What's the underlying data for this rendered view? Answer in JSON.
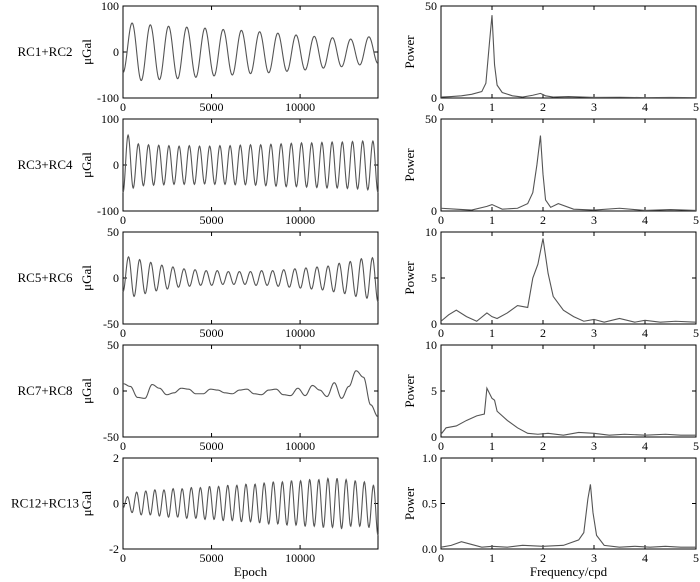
{
  "chart_data": [
    {
      "type": "line",
      "panel": "time",
      "row_label": "RC1+RC2",
      "ylabel": "μGal",
      "xlabel": "",
      "xlim": [
        0,
        14400
      ],
      "ylim": [
        -100,
        100
      ],
      "xticks": [
        0,
        5000,
        10000
      ],
      "yticks": [
        -100,
        0,
        100
      ],
      "series": [
        {
          "values": [
            -45,
            63,
            -62,
            59,
            -60,
            56,
            -58,
            54,
            -55,
            52,
            -52,
            49,
            -50,
            47,
            -47,
            44,
            -45,
            41,
            -42,
            37,
            -39,
            34,
            -35,
            31,
            -32,
            28,
            -28,
            33,
            -25
          ],
          "x_start": 0,
          "x_end": 14400
        }
      ]
    },
    {
      "type": "line",
      "panel": "spectrum",
      "ylabel": "Power",
      "xlabel": "",
      "xlim": [
        0,
        5
      ],
      "ylim": [
        0,
        50
      ],
      "xticks": [
        0,
        1,
        2,
        3,
        4,
        5
      ],
      "yticks": [
        0,
        50
      ],
      "series": [
        {
          "x": [
            0,
            0.2,
            0.4,
            0.6,
            0.8,
            0.88,
            0.95,
            1.0,
            1.05,
            1.1,
            1.2,
            1.4,
            1.6,
            1.8,
            1.95,
            2.05,
            2.2,
            2.5,
            3.0,
            3.5,
            4.0,
            4.5,
            5.0
          ],
          "y": [
            0.5,
            0.8,
            1.2,
            2.0,
            3.5,
            8,
            30,
            45,
            18,
            7,
            3,
            1.2,
            0.5,
            1.5,
            2.5,
            1.2,
            0.5,
            0.8,
            0.3,
            0.4,
            0.2,
            0.3,
            0.2
          ]
        }
      ]
    },
    {
      "type": "line",
      "panel": "time",
      "row_label": "RC3+RC4",
      "ylabel": "μGal",
      "xlabel": "",
      "xlim": [
        0,
        14400
      ],
      "ylim": [
        -100,
        100
      ],
      "xticks": [
        0,
        5000,
        10000
      ],
      "yticks": [
        -100,
        0,
        100
      ],
      "series": [
        {
          "values": [
            -60,
            65,
            -50,
            46,
            -45,
            44,
            -44,
            43,
            -43,
            42,
            -42,
            41,
            -42,
            42,
            -42,
            41,
            -41,
            41,
            -42,
            42,
            -42,
            42,
            -43,
            43,
            -43,
            44,
            -44,
            44,
            -45,
            45,
            -46,
            46,
            -47,
            47,
            -47,
            48,
            -48,
            48,
            -49,
            49,
            -50,
            50,
            -50,
            50,
            -51,
            51,
            -52,
            52,
            -54,
            52,
            -60
          ],
          "x_start": 0,
          "x_end": 14400
        }
      ]
    },
    {
      "type": "line",
      "panel": "spectrum",
      "ylabel": "Power",
      "xlabel": "",
      "xlim": [
        0,
        5
      ],
      "ylim": [
        0,
        50
      ],
      "xticks": [
        0,
        1,
        2,
        3,
        4,
        5
      ],
      "yticks": [
        0,
        50
      ],
      "series": [
        {
          "x": [
            0,
            0.3,
            0.6,
            0.9,
            1.0,
            1.2,
            1.5,
            1.7,
            1.8,
            1.88,
            1.95,
            2.0,
            2.05,
            2.15,
            2.3,
            2.6,
            3.0,
            3.5,
            4.0,
            4.5,
            5.0
          ],
          "y": [
            1.5,
            1.0,
            0.5,
            2.5,
            3.5,
            1.0,
            1.5,
            4,
            10,
            25,
            41,
            20,
            6,
            2,
            4,
            1,
            0.5,
            1.5,
            0.3,
            0.8,
            0.3
          ]
        }
      ]
    },
    {
      "type": "line",
      "panel": "time",
      "row_label": "RC5+RC6",
      "ylabel": "μGal",
      "xlabel": "",
      "xlim": [
        0,
        14400
      ],
      "ylim": [
        -50,
        50
      ],
      "xticks": [
        0,
        5000,
        10000
      ],
      "yticks": [
        -50,
        0,
        50
      ],
      "series": [
        {
          "values": [
            -15,
            23,
            -20,
            20,
            -17,
            17,
            -14,
            14,
            -12,
            12,
            -10,
            10,
            -9,
            9,
            -8,
            8,
            -8,
            8,
            -7,
            7,
            -7,
            7,
            -7,
            7,
            -8,
            8,
            -8,
            8,
            -9,
            9,
            -10,
            10,
            -11,
            11,
            -12,
            12,
            -13,
            13,
            -15,
            16,
            -17,
            18,
            -20,
            21,
            -22,
            22,
            -26
          ],
          "x_start": 0,
          "x_end": 14400
        }
      ]
    },
    {
      "type": "line",
      "panel": "spectrum",
      "ylabel": "Power",
      "xlabel": "",
      "xlim": [
        0,
        5
      ],
      "ylim": [
        0,
        10
      ],
      "xticks": [
        0,
        1,
        2,
        3,
        4,
        5
      ],
      "yticks": [
        0,
        5,
        10
      ],
      "series": [
        {
          "x": [
            0,
            0.15,
            0.3,
            0.5,
            0.7,
            0.9,
            1.0,
            1.1,
            1.3,
            1.5,
            1.7,
            1.8,
            1.9,
            2.0,
            2.1,
            2.2,
            2.4,
            2.6,
            2.8,
            3.0,
            3.2,
            3.5,
            3.8,
            4.0,
            4.3,
            4.6,
            5.0
          ],
          "y": [
            0.3,
            1.0,
            1.5,
            0.8,
            0.3,
            1.2,
            0.8,
            0.6,
            1.2,
            2.0,
            1.8,
            5,
            6.5,
            9.3,
            5.5,
            3.0,
            1.5,
            0.8,
            0.3,
            0.5,
            0.2,
            0.6,
            0.2,
            0.4,
            0.2,
            0.3,
            0.2
          ]
        }
      ]
    },
    {
      "type": "line",
      "panel": "time",
      "row_label": "RC7+RC8",
      "ylabel": "μGal",
      "xlabel": "",
      "xlim": [
        0,
        14400
      ],
      "ylim": [
        -50,
        50
      ],
      "xticks": [
        0,
        5000,
        10000
      ],
      "yticks": [
        -50,
        0,
        50
      ],
      "series": [
        {
          "values": [
            8,
            5,
            -7,
            -8,
            7,
            3,
            -4,
            -2,
            3,
            2,
            -3,
            -3,
            2,
            1,
            -2,
            -3,
            1,
            2,
            -3,
            -4,
            1,
            2,
            -4,
            -5,
            3,
            -5,
            6,
            1,
            -6,
            9,
            -8,
            5,
            22,
            15,
            -15,
            -28
          ],
          "x_start": 0,
          "x_end": 14400
        }
      ]
    },
    {
      "type": "line",
      "panel": "spectrum",
      "ylabel": "Power",
      "xlabel": "",
      "xlim": [
        0,
        5
      ],
      "ylim": [
        0,
        10
      ],
      "xticks": [
        0,
        1,
        2,
        3,
        4,
        5
      ],
      "yticks": [
        0,
        5,
        10
      ],
      "series": [
        {
          "x": [
            0,
            0.1,
            0.3,
            0.5,
            0.7,
            0.85,
            0.9,
            1.0,
            1.05,
            1.1,
            1.3,
            1.5,
            1.7,
            1.9,
            2.1,
            2.4,
            2.7,
            3.0,
            3.3,
            3.6,
            4.0,
            4.4,
            4.7,
            5.0
          ],
          "y": [
            0.3,
            1.0,
            1.2,
            1.8,
            2.3,
            2.5,
            5.3,
            4.2,
            4.0,
            2.8,
            1.8,
            1.0,
            0.4,
            0.3,
            0.4,
            0.2,
            0.5,
            0.4,
            0.2,
            0.3,
            0.2,
            0.3,
            0.2,
            0.2
          ]
        }
      ]
    },
    {
      "type": "line",
      "panel": "time",
      "row_label": "RC12+RC13",
      "ylabel": "μGal",
      "xlabel": "Epoch",
      "xlim": [
        0,
        14400
      ],
      "ylim": [
        -2,
        2
      ],
      "xticks": [
        0,
        5000,
        10000
      ],
      "yticks": [
        -2,
        0,
        2
      ],
      "series": [
        {
          "values": [
            -0.2,
            0.3,
            -0.4,
            0.5,
            -0.5,
            0.55,
            -0.5,
            0.6,
            -0.55,
            0.6,
            -0.6,
            0.65,
            -0.6,
            0.65,
            -0.65,
            0.7,
            -0.65,
            0.7,
            -0.7,
            0.75,
            -0.7,
            0.75,
            -0.75,
            0.8,
            -0.75,
            0.8,
            -0.8,
            0.85,
            -0.8,
            0.85,
            -0.85,
            0.9,
            -0.9,
            0.95,
            -0.9,
            0.95,
            -0.95,
            1.0,
            -0.95,
            1.0,
            -1.0,
            1.05,
            -1.0,
            1.05,
            -1.05,
            1.1,
            -1.05,
            1.1,
            -1.1,
            1.05,
            -1.0,
            1.0,
            -1.0,
            0.95,
            -1.05,
            0.8,
            -1.4
          ],
          "x_start": 0,
          "x_end": 14400
        }
      ]
    },
    {
      "type": "line",
      "panel": "spectrum",
      "ylabel": "Power",
      "xlabel": "Frequency/cpd",
      "xlim": [
        0,
        5
      ],
      "ylim": [
        0,
        1
      ],
      "xticks": [
        0,
        1,
        2,
        3,
        4,
        5
      ],
      "yticks": [
        0,
        0.5,
        1
      ],
      "ytick_labels": [
        "0.0",
        "0.5",
        "1.0"
      ],
      "series": [
        {
          "x": [
            0,
            0.2,
            0.4,
            0.6,
            0.8,
            1.0,
            1.3,
            1.6,
            2.0,
            2.4,
            2.7,
            2.8,
            2.88,
            2.93,
            2.98,
            3.05,
            3.2,
            3.5,
            3.8,
            4.1,
            4.4,
            4.7,
            5.0
          ],
          "y": [
            0.02,
            0.04,
            0.08,
            0.05,
            0.02,
            0.03,
            0.02,
            0.04,
            0.03,
            0.04,
            0.1,
            0.18,
            0.55,
            0.71,
            0.4,
            0.15,
            0.04,
            0.02,
            0.03,
            0.02,
            0.03,
            0.02,
            0.02
          ]
        }
      ]
    }
  ]
}
